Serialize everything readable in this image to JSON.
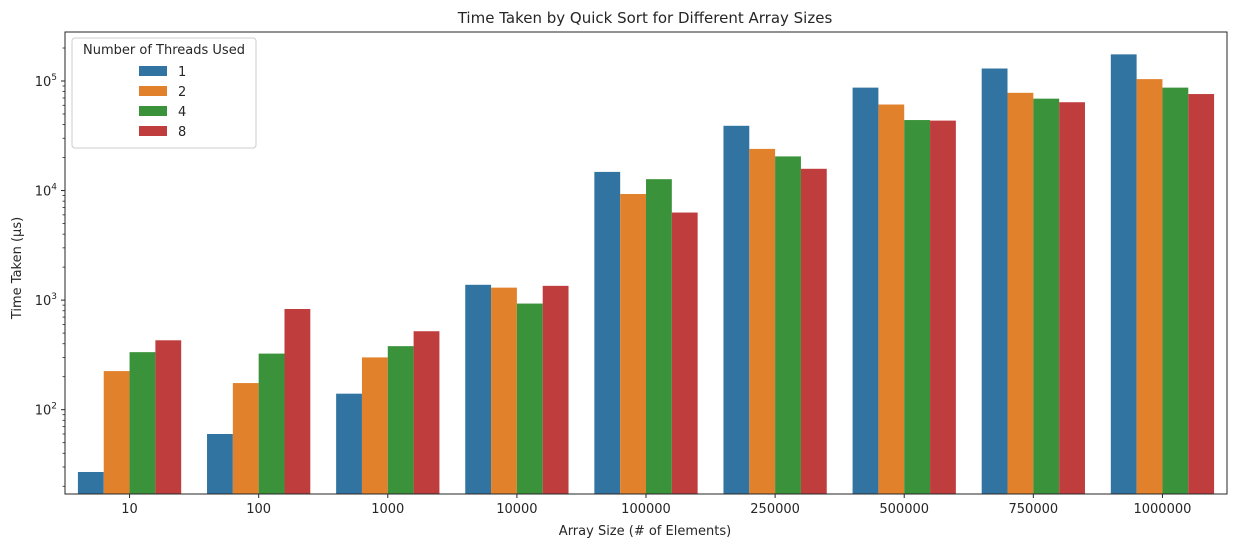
{
  "chart_data": {
    "type": "bar",
    "title": "Time Taken by Quick Sort for Different Array Sizes",
    "xlabel": "Array Size (# of Elements)",
    "ylabel": "Time Taken (μs)",
    "yscale": "log",
    "ylim": [
      17,
      280000
    ],
    "y_ticks": [
      {
        "base": "10",
        "exp": "2",
        "value": 100
      },
      {
        "base": "10",
        "exp": "3",
        "value": 1000
      },
      {
        "base": "10",
        "exp": "4",
        "value": 10000
      },
      {
        "base": "10",
        "exp": "5",
        "value": 100000
      }
    ],
    "categories": [
      "10",
      "100",
      "1000",
      "10000",
      "100000",
      "250000",
      "500000",
      "750000",
      "1000000"
    ],
    "legend_title": "Number of Threads Used",
    "legend_position": "top-left",
    "series": [
      {
        "name": "1",
        "color": "#3274a1",
        "values": [
          27,
          60,
          140,
          1380,
          14800,
          39000,
          87000,
          130000,
          175000
        ]
      },
      {
        "name": "2",
        "color": "#e1812c",
        "values": [
          225,
          175,
          300,
          1300,
          9300,
          24000,
          61000,
          78000,
          104000
        ]
      },
      {
        "name": "4",
        "color": "#3a923a",
        "values": [
          335,
          325,
          380,
          930,
          12700,
          20500,
          44000,
          69000,
          87000
        ]
      },
      {
        "name": "8",
        "color": "#c03d3e",
        "values": [
          430,
          830,
          520,
          1350,
          6300,
          15800,
          43500,
          64000,
          76000
        ]
      }
    ]
  }
}
